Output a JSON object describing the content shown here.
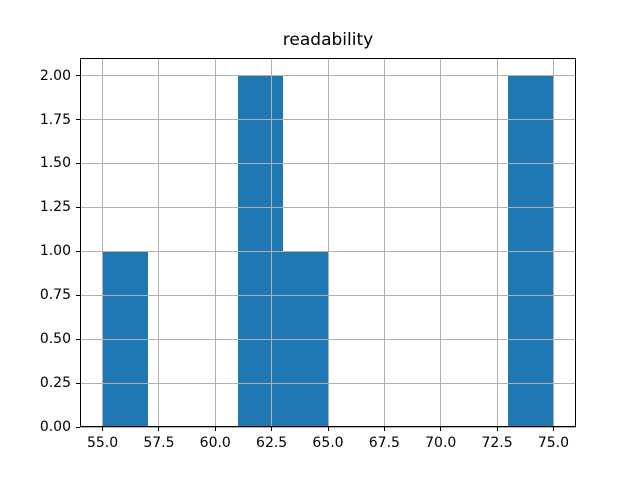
{
  "figure": {
    "background": "#ffffff"
  },
  "chart_data": {
    "type": "bar",
    "subtype": "histogram",
    "title": "readability",
    "xlabel": "",
    "ylabel": "",
    "bin_edges": [
      55,
      57,
      59,
      61,
      63,
      65,
      67,
      69,
      71,
      73,
      75
    ],
    "counts": [
      1,
      0,
      0,
      2,
      1,
      0,
      0,
      0,
      0,
      2
    ],
    "xticks": [
      55.0,
      57.5,
      60.0,
      62.5,
      65.0,
      67.5,
      70.0,
      72.5,
      75.0
    ],
    "xtick_labels": [
      "55.0",
      "57.5",
      "60.0",
      "62.5",
      "65.0",
      "67.5",
      "70.0",
      "72.5",
      "75.0"
    ],
    "yticks": [
      0.0,
      0.25,
      0.5,
      0.75,
      1.0,
      1.25,
      1.5,
      1.75,
      2.0
    ],
    "ytick_labels": [
      "0.00",
      "0.25",
      "0.50",
      "0.75",
      "1.00",
      "1.25",
      "1.50",
      "1.75",
      "2.00"
    ],
    "xlim": [
      54,
      76
    ],
    "ylim": [
      0,
      2.1
    ],
    "grid": true,
    "grid_color": "#b0b0b0",
    "bar_color": "#1f77b4",
    "spine_color": "#000000",
    "legend": "none"
  }
}
